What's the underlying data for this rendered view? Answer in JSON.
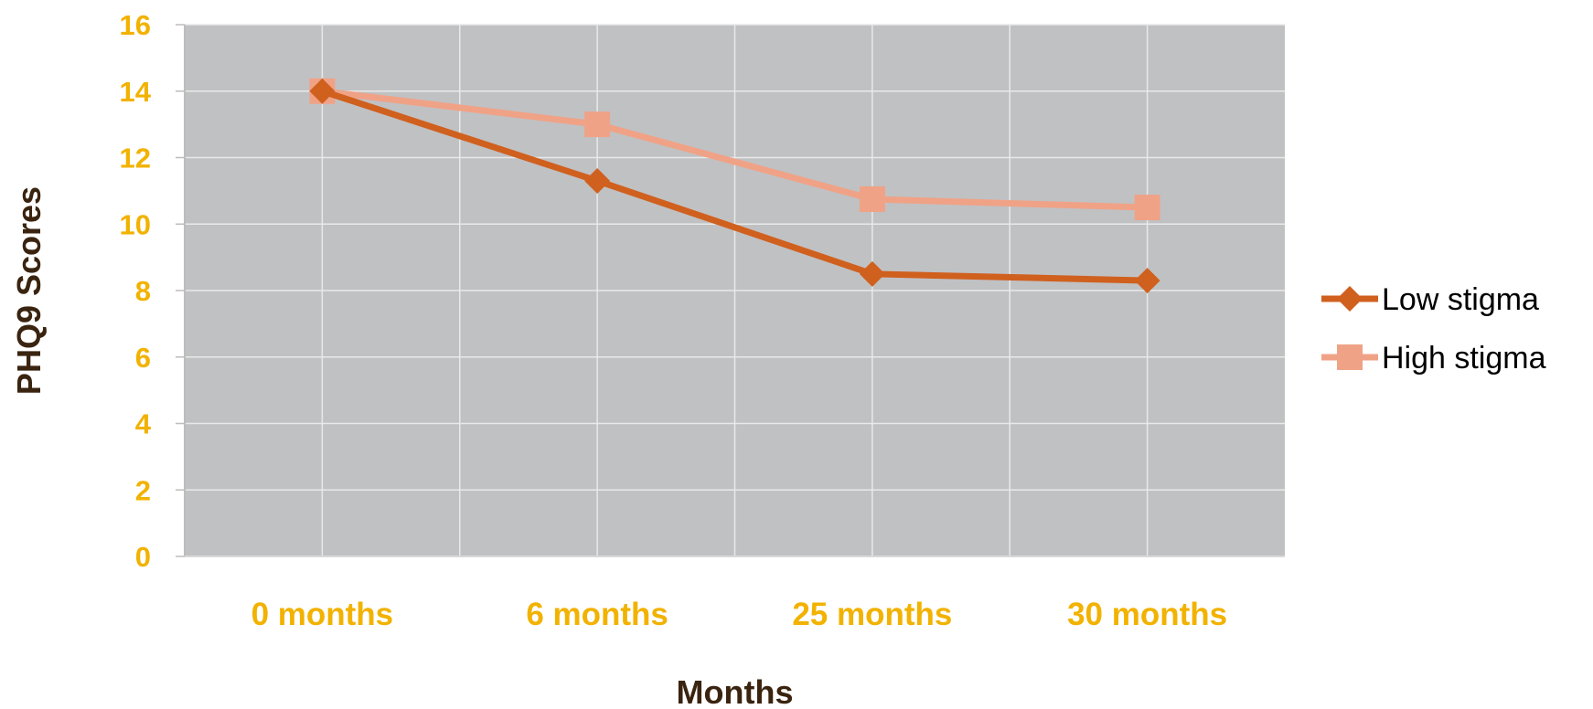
{
  "chart_data": {
    "type": "line",
    "title": "",
    "xlabel": "Months",
    "ylabel": "PHQ9 Scores",
    "categories": [
      "0 months",
      "6 months",
      "25 months",
      "30 months"
    ],
    "ylim": [
      0,
      16
    ],
    "yticks": [
      0,
      2,
      4,
      6,
      8,
      10,
      12,
      14,
      16
    ],
    "grid": true,
    "legend_position": "right",
    "series": [
      {
        "name": "Low stigma",
        "values": [
          14.0,
          11.3,
          8.5,
          8.3
        ],
        "color": "#d0601e",
        "marker": "diamond"
      },
      {
        "name": "High stigma",
        "values": [
          14.0,
          13.0,
          10.75,
          10.5
        ],
        "color": "#f0a286",
        "marker": "square"
      }
    ],
    "colors": {
      "plot_background": "#c0c1c3",
      "gridline": "#e9e9e9",
      "tick_label": "#f2b200",
      "axis_title": "#3a2410"
    }
  }
}
